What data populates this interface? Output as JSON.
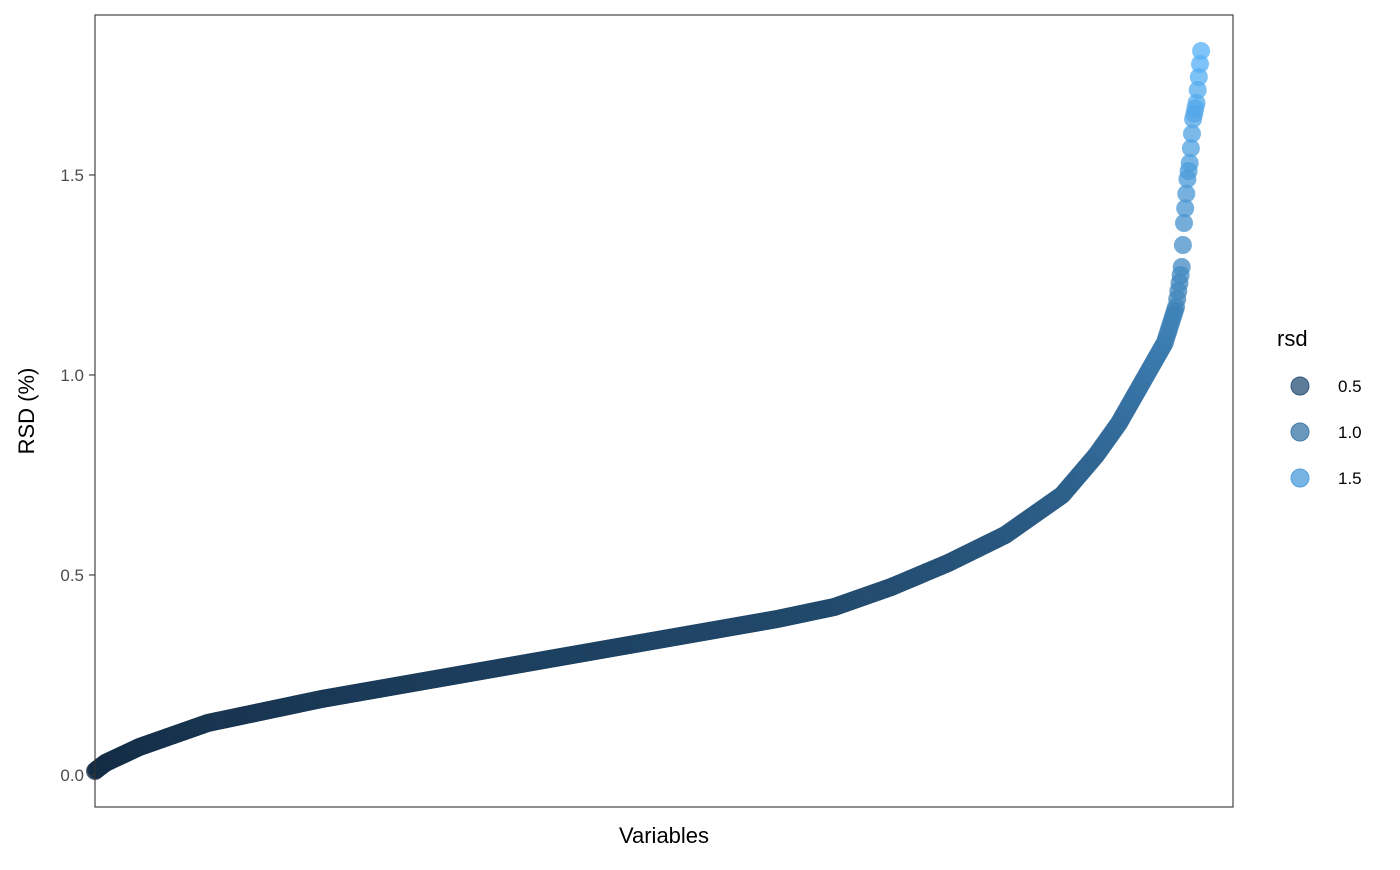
{
  "chart_data": {
    "type": "scatter",
    "title": "",
    "xlabel": "Variables",
    "ylabel": "RSD (%)",
    "ylim": [
      -0.08,
      1.9
    ],
    "y_ticks": [
      0.0,
      0.5,
      1.0,
      1.5
    ],
    "y_tick_labels": [
      "0.0",
      "0.5",
      "1.0",
      "1.5"
    ],
    "x_ticks": [],
    "grid": false,
    "n_points": 1000,
    "legend": {
      "title": "rsd",
      "position": "right",
      "entries": [
        {
          "label": "0.5",
          "value": 0.5
        },
        {
          "label": "1.0",
          "value": 1.0
        },
        {
          "label": "1.5",
          "value": 1.5
        }
      ]
    },
    "color_scale": {
      "low": "#132B43",
      "high": "#56B1F7",
      "domain": [
        0.0,
        1.8
      ],
      "alpha": 0.75
    },
    "curve_anchors": [
      {
        "rank": 1,
        "rsd": 0.01
      },
      {
        "rank": 10,
        "rsd": 0.03
      },
      {
        "rank": 40,
        "rsd": 0.07
      },
      {
        "rank": 100,
        "rsd": 0.13
      },
      {
        "rank": 200,
        "rsd": 0.19
      },
      {
        "rank": 300,
        "rsd": 0.24
      },
      {
        "rank": 400,
        "rsd": 0.29
      },
      {
        "rank": 500,
        "rsd": 0.34
      },
      {
        "rank": 600,
        "rsd": 0.39
      },
      {
        "rank": 650,
        "rsd": 0.42
      },
      {
        "rank": 700,
        "rsd": 0.47
      },
      {
        "rank": 750,
        "rsd": 0.53
      },
      {
        "rank": 800,
        "rsd": 0.6
      },
      {
        "rank": 850,
        "rsd": 0.7
      },
      {
        "rank": 880,
        "rsd": 0.8
      },
      {
        "rank": 900,
        "rsd": 0.88
      },
      {
        "rank": 920,
        "rsd": 0.98
      },
      {
        "rank": 940,
        "rsd": 1.08
      },
      {
        "rank": 950,
        "rsd": 1.17
      },
      {
        "rank": 955,
        "rsd": 1.27
      },
      {
        "rank": 957,
        "rsd": 1.38
      },
      {
        "rank": 960,
        "rsd": 1.49
      },
      {
        "rank": 962,
        "rsd": 1.53
      },
      {
        "rank": 965,
        "rsd": 1.64
      },
      {
        "rank": 968,
        "rsd": 1.68
      },
      {
        "rank": 972,
        "rsd": 1.81
      }
    ]
  }
}
